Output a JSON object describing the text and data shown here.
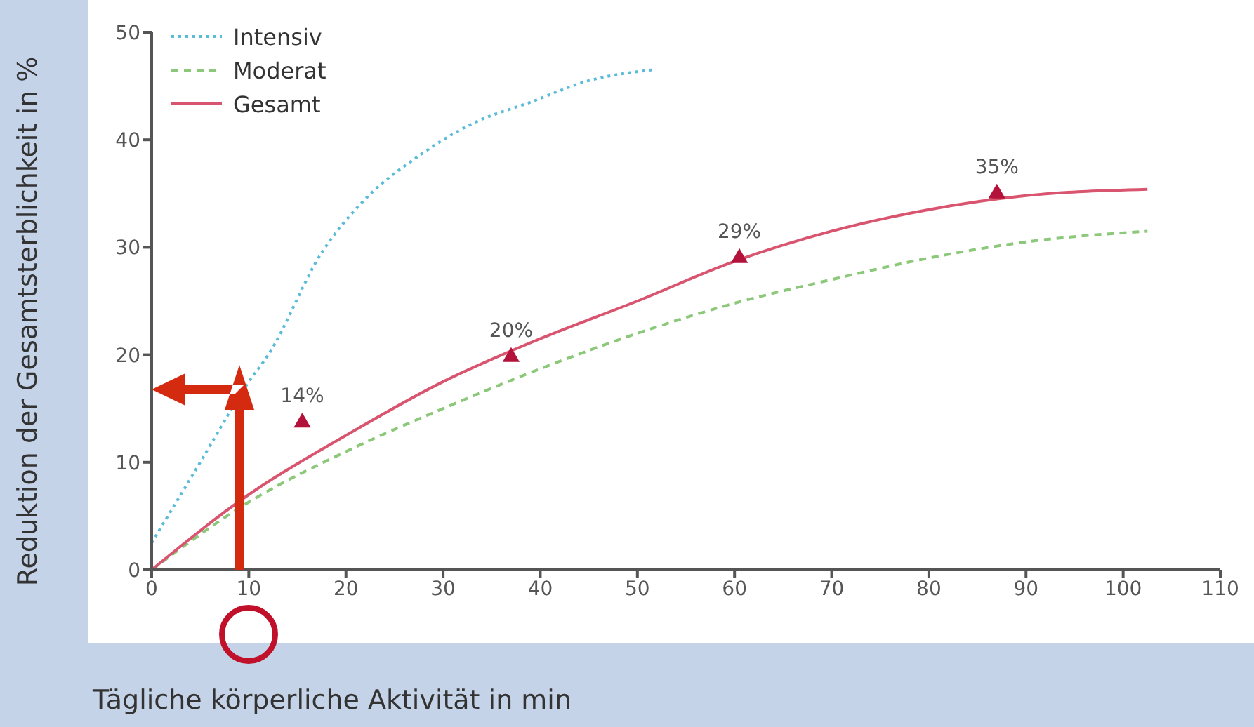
{
  "chart_data": {
    "type": "line",
    "xlabel": "Tägliche körperliche Aktivität in min",
    "ylabel": "Reduktion der Gesamtsterblichkeit in %",
    "xlim": [
      0,
      110
    ],
    "xticks": [
      0,
      10,
      20,
      30,
      40,
      50,
      60,
      70,
      80,
      90,
      100,
      110
    ],
    "ylim": [
      0,
      50
    ],
    "yticks": [
      0,
      10,
      20,
      30,
      40,
      50
    ],
    "legend": "top left",
    "series": [
      {
        "name": "Intensiv",
        "color": "#5bbcd8",
        "line_style": "dotted",
        "marker": "none",
        "x": [
          0,
          5,
          10,
          12,
          17.5,
          22,
          27.5,
          33,
          39,
          45,
          51.5
        ],
        "values": [
          2.5,
          10,
          17.5,
          20,
          29.5,
          34.5,
          38.5,
          41.5,
          43.5,
          45.5,
          46.5
        ]
      },
      {
        "name": "Moderat",
        "color": "#8cc87a",
        "line_style": "dashed",
        "marker": "none",
        "x": [
          0,
          10,
          20,
          30,
          40,
          50,
          60,
          70,
          80,
          90,
          102.5
        ],
        "values": [
          0,
          6.3,
          11,
          15,
          18.7,
          22,
          24.8,
          27,
          29,
          30.5,
          31.5
        ]
      },
      {
        "name": "Gesamt",
        "color": "#d9546e",
        "line_style": "solid",
        "marker": "none",
        "x": [
          0,
          10,
          20,
          30,
          40,
          50,
          60,
          70,
          80,
          90,
          102.5
        ],
        "values": [
          0,
          7,
          12.5,
          17.5,
          21.5,
          25,
          28.7,
          31.5,
          33.5,
          34.8,
          35.4
        ]
      },
      {
        "type": "scatter",
        "color": "#b3123a",
        "marker": "triangle",
        "x": [
          15.5,
          37,
          60.5,
          87
        ],
        "values": [
          13.7,
          19.8,
          29,
          35
        ],
        "value_labels": [
          "14%",
          "20%",
          "29%",
          "35%"
        ]
      }
    ]
  }
}
